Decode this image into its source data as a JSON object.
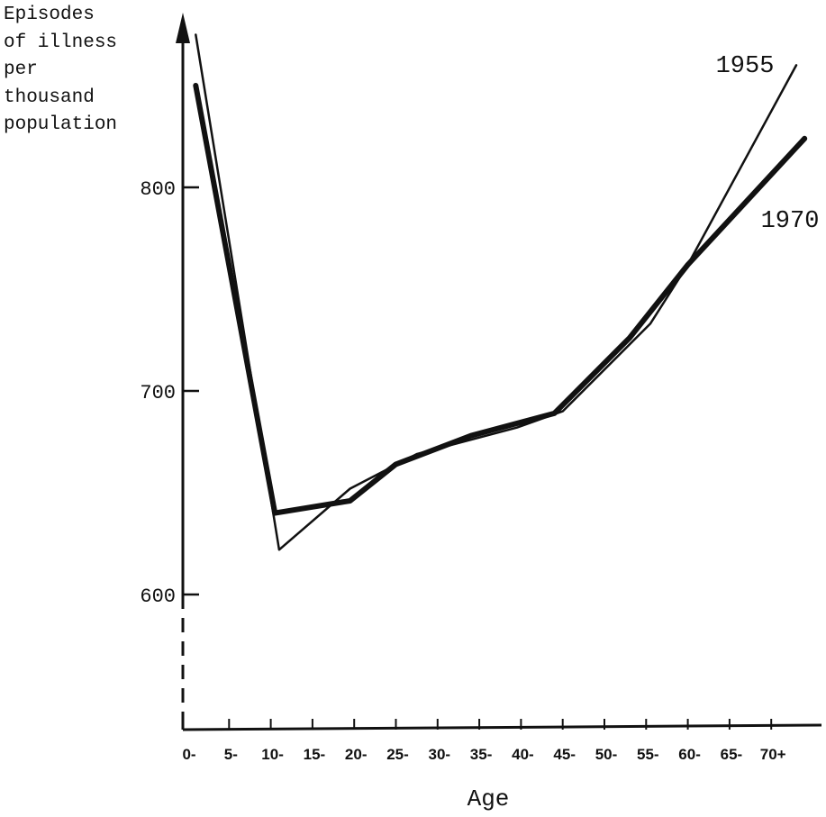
{
  "chart_data": {
    "type": "line",
    "ylabel": "Episodes\nof illness\nper\nthousand\npopulation",
    "xlabel": "Age",
    "categories": [
      "0-",
      "5-",
      "10-",
      "15-",
      "20-",
      "25-",
      "30-",
      "35-",
      "40-",
      "45-",
      "50-",
      "55-",
      "60-",
      "65-",
      "70+"
    ],
    "ylim": [
      555,
      890
    ],
    "yticks": [
      600,
      700,
      800
    ],
    "grid": false,
    "series": [
      {
        "name": "1955",
        "points": [
          [
            0.2,
            875
          ],
          [
            2.2,
            622
          ],
          [
            3.9,
            652
          ],
          [
            5.5,
            669
          ],
          [
            7.9,
            682
          ],
          [
            9.0,
            690
          ],
          [
            11.1,
            733
          ],
          [
            12.0,
            762
          ],
          [
            14.6,
            860
          ]
        ]
      },
      {
        "name": "1970",
        "points": [
          [
            0.2,
            850
          ],
          [
            2.1,
            640
          ],
          [
            3.9,
            646
          ],
          [
            5.0,
            664
          ],
          [
            6.8,
            678
          ],
          [
            8.8,
            689
          ],
          [
            10.6,
            726
          ],
          [
            12.0,
            762
          ],
          [
            14.8,
            824
          ]
        ]
      }
    ]
  }
}
